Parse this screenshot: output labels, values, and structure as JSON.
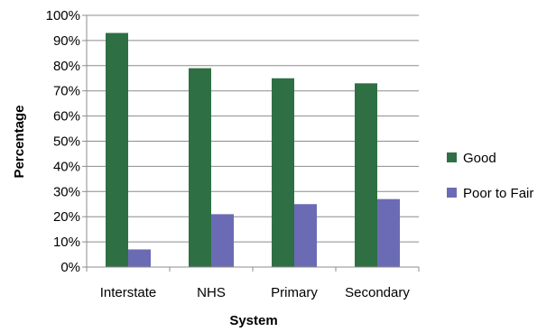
{
  "chart_data": {
    "type": "bar",
    "title": "",
    "xlabel": "System",
    "ylabel": "Percentage",
    "categories": [
      "Interstate",
      "NHS",
      "Primary",
      "Secondary"
    ],
    "series": [
      {
        "name": "Good",
        "values": [
          93,
          79,
          75,
          73
        ],
        "color": "#2e7043"
      },
      {
        "name": "Poor to Fair",
        "values": [
          7,
          21,
          25,
          27
        ],
        "color": "#6b6bb5"
      }
    ],
    "ylim": [
      0,
      100
    ],
    "yticks": [
      "0%",
      "10%",
      "20%",
      "30%",
      "40%",
      "50%",
      "60%",
      "70%",
      "80%",
      "90%",
      "100%"
    ],
    "grid": true,
    "legend_position": "right"
  }
}
